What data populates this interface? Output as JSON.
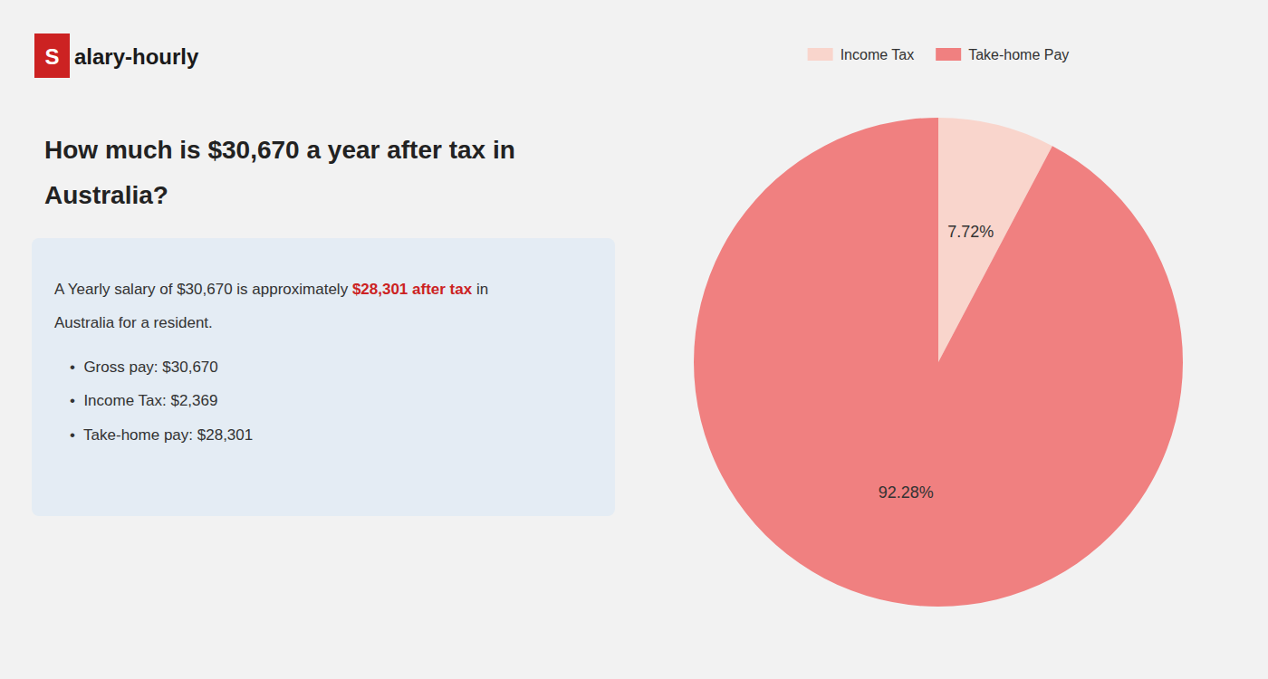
{
  "chart_data": {
    "type": "pie",
    "title": [
      "How much is $30,670 a year after tax in",
      "Australia?"
    ],
    "annotations": [
      "S",
      "alary-hourly",
      "A Yearly salary of $30,670 is approximately ",
      "$28,301 after tax",
      " in",
      "Australia for a resident.",
      "•  Gross pay: $30,670",
      "•  Income Tax: $2,369",
      "•  Take-home pay: $28,301"
    ],
    "categories": [
      "Income Tax",
      "Take-home Pay"
    ],
    "values": [
      7.72,
      92.28
    ],
    "value_labels": [
      "7.72%",
      "92.28%"
    ],
    "colors": [
      "#f9d5cc",
      "#f08080"
    ],
    "data_labels": true,
    "legend": "top"
  }
}
